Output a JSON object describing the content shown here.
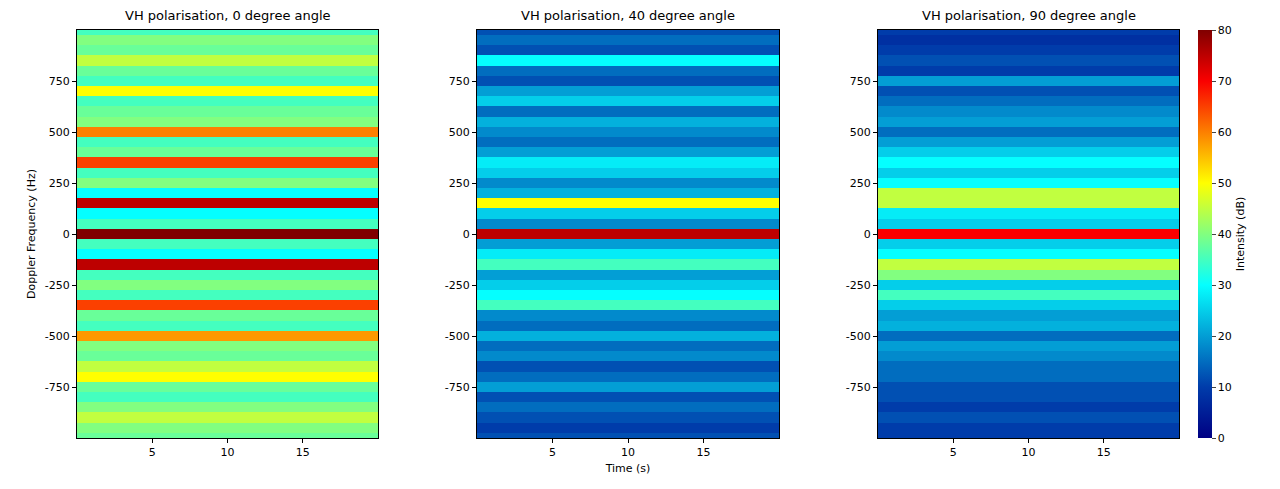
{
  "chart_data": [
    {
      "type": "heatmap",
      "title": "VH polarisation, 0 degree angle",
      "ylabel": "Doppler Frequency (Hz)",
      "xlim": [
        0,
        20
      ],
      "xticks": [
        5,
        10,
        15
      ],
      "ylim": [
        -1000,
        1000
      ],
      "yticks": [
        -750,
        -500,
        -250,
        0,
        250,
        500,
        750
      ],
      "x": [
        0,
        20
      ],
      "y": [
        -1000,
        -950,
        -900,
        -850,
        -800,
        -750,
        -700,
        -650,
        -600,
        -550,
        -500,
        -450,
        -400,
        -350,
        -300,
        -250,
        -200,
        -150,
        -100,
        -50,
        0,
        50,
        100,
        150,
        200,
        250,
        300,
        350,
        400,
        450,
        500,
        550,
        600,
        650,
        700,
        750,
        800,
        850,
        900,
        950,
        1000
      ],
      "values": [
        38,
        40,
        45,
        40,
        35,
        38,
        50,
        45,
        38,
        40,
        58,
        35,
        38,
        65,
        35,
        40,
        35,
        75,
        30,
        35,
        80,
        35,
        30,
        75,
        30,
        40,
        35,
        65,
        38,
        35,
        60,
        40,
        38,
        35,
        50,
        35,
        38,
        45,
        38,
        40,
        35
      ]
    },
    {
      "type": "heatmap",
      "title": "VH polarisation, 40 degree angle",
      "xlabel": "Time (s)",
      "xlim": [
        0,
        20
      ],
      "xticks": [
        5,
        10,
        15
      ],
      "ylim": [
        -1000,
        1000
      ],
      "yticks": [
        -750,
        -500,
        -250,
        0,
        250,
        500,
        750
      ],
      "x": [
        0,
        20
      ],
      "y": [
        -1000,
        -950,
        -900,
        -850,
        -800,
        -750,
        -700,
        -650,
        -600,
        -550,
        -500,
        -450,
        -400,
        -350,
        -300,
        -250,
        -200,
        -150,
        -100,
        -50,
        0,
        50,
        100,
        150,
        200,
        250,
        300,
        350,
        400,
        450,
        500,
        550,
        600,
        650,
        700,
        750,
        800,
        850,
        900,
        950,
        1000
      ],
      "values": [
        12,
        10,
        12,
        15,
        12,
        20,
        15,
        12,
        18,
        15,
        22,
        15,
        18,
        35,
        30,
        25,
        20,
        35,
        28,
        20,
        75,
        18,
        25,
        50,
        22,
        18,
        25,
        28,
        20,
        15,
        18,
        22,
        15,
        25,
        20,
        12,
        15,
        30,
        12,
        15,
        12
      ]
    },
    {
      "type": "heatmap",
      "title": "VH polarisation, 90 degree angle",
      "xlim": [
        0,
        20
      ],
      "xticks": [
        5,
        10,
        15
      ],
      "ylim": [
        -1000,
        1000
      ],
      "yticks": [
        -750,
        -500,
        -250,
        0,
        250,
        500,
        750
      ],
      "x": [
        0,
        20
      ],
      "y": [
        -1000,
        -950,
        -900,
        -850,
        -800,
        -750,
        -700,
        -650,
        -600,
        -550,
        -500,
        -450,
        -400,
        -350,
        -300,
        -250,
        -200,
        -150,
        -100,
        -50,
        0,
        50,
        100,
        150,
        200,
        250,
        300,
        350,
        400,
        450,
        500,
        550,
        600,
        650,
        700,
        750,
        800,
        850,
        900,
        950,
        1000
      ],
      "values": [
        10,
        10,
        12,
        10,
        12,
        12,
        15,
        15,
        18,
        20,
        15,
        22,
        20,
        25,
        35,
        25,
        40,
        45,
        30,
        25,
        70,
        25,
        28,
        45,
        45,
        30,
        25,
        30,
        25,
        20,
        15,
        20,
        18,
        15,
        12,
        20,
        10,
        12,
        10,
        8,
        10
      ],
      "colorbar": {
        "title": "Intensity (dB)",
        "range": [
          0,
          80
        ],
        "ticks": [
          0,
          10,
          20,
          30,
          40,
          50,
          60,
          70,
          80
        ]
      }
    }
  ]
}
